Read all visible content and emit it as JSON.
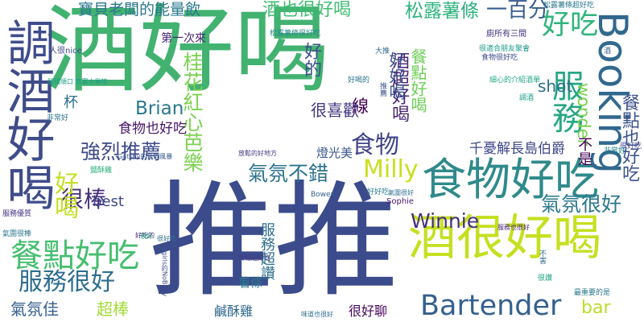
{
  "words": [
    {
      "text": "酒好喝",
      "color": "#42b271"
    },
    {
      "text": "推推",
      "color": "#3b4b8c"
    },
    {
      "text": "食物好吃",
      "color": "#2f8a8b"
    },
    {
      "text": "酒很好喝",
      "color": "#c5e021"
    },
    {
      "text": "調酒好喝",
      "color": "#3f4c8a"
    },
    {
      "text": "Booking",
      "color": "#31688e"
    },
    {
      "text": "服務",
      "color": "#26a784"
    },
    {
      "text": "Bartender",
      "color": "#35608d"
    },
    {
      "text": "餐點好吃",
      "color": "#46be6f"
    },
    {
      "text": "服務很好",
      "color": "#2e6d8e"
    },
    {
      "text": "Milly",
      "color": "#c8e020"
    },
    {
      "text": "Winnie",
      "color": "#46307e"
    },
    {
      "text": "氣氛很好",
      "color": "#2a788e"
    },
    {
      "text": "強烈推薦",
      "color": "#3e4a89"
    },
    {
      "text": "氣氛不錯",
      "color": "#2c728e"
    },
    {
      "text": "桂花紅心芭樂",
      "color": "#7cd250"
    },
    {
      "text": "酒也很好喝",
      "color": "#40bd72"
    },
    {
      "text": "好吃",
      "color": "#31b57b"
    },
    {
      "text": "餐點也好吃",
      "color": "#3b528b"
    },
    {
      "text": "很棒",
      "color": "#472d7b"
    },
    {
      "text": "好喝",
      "color": "#c2df23"
    },
    {
      "text": "食物",
      "color": "#414487"
    },
    {
      "text": "寶貝老闆的能量飲",
      "color": "#2a778e"
    },
    {
      "text": "松露薯條",
      "color": "#2db27d"
    },
    {
      "text": "一百分",
      "color": "#365c8d"
    },
    {
      "text": "Brian",
      "color": "#2a788e"
    },
    {
      "text": "好的",
      "color": "#3d4e8a"
    },
    {
      "text": "酒超好喝",
      "color": "#482576"
    },
    {
      "text": "餐點好喝",
      "color": "#6ece58"
    },
    {
      "text": "好好喝",
      "color": "#3b528b"
    },
    {
      "text": "wonder",
      "color": "#7ad151"
    },
    {
      "text": "不是",
      "color": "#440154"
    },
    {
      "text": "shot",
      "color": "#2e6e8e"
    },
    {
      "text": "線",
      "color": "#440154"
    },
    {
      "text": "杯",
      "color": "#2d708e"
    },
    {
      "text": "很喜歡",
      "color": "#453781"
    },
    {
      "text": "食物也好吃",
      "color": "#481769"
    },
    {
      "text": "千憂解長島伯爵",
      "color": "#3f4788"
    },
    {
      "text": "燈光美",
      "color": "#39568c"
    },
    {
      "text": "bar",
      "color": "#bade28"
    },
    {
      "text": "best",
      "color": "#3e4989"
    },
    {
      "text": "氣氛佳",
      "color": "#355f8d"
    },
    {
      "text": "超棒",
      "color": "#a2da37"
    },
    {
      "text": "鹹酥雞",
      "color": "#30698e"
    },
    {
      "text": "很好聊",
      "color": "#450559"
    },
    {
      "text": "服務超讚",
      "color": "#2e6f8e"
    },
    {
      "text": "薯條",
      "color": "#2a788e"
    },
    {
      "text": "第一次來",
      "color": "#482475"
    },
    {
      "text": "人很nice",
      "color": "#3f4889"
    },
    {
      "text": "廁所有三間",
      "color": "#46337f"
    },
    {
      "text": "很適合朋友聚會",
      "color": "#1f9a8a"
    },
    {
      "text": "食物很好吃",
      "color": "#3e4a89"
    },
    {
      "text": "細心的介紹酒單",
      "color": "#22a785"
    },
    {
      "text": "松露薯條超好吃",
      "color": "#2a788e"
    },
    {
      "text": "松露薯條很好吃",
      "color": "#24878e"
    },
    {
      "text": "大推",
      "color": "#31688e"
    },
    {
      "text": "調酒",
      "color": "#1e9c89"
    },
    {
      "text": "非常好",
      "color": "#2d708e"
    },
    {
      "text": "服務優質",
      "color": "#463480"
    },
    {
      "text": "氣圍很棒",
      "color": "#2c738e"
    },
    {
      "text": "Sophie",
      "color": "#48186a"
    },
    {
      "text": "Bowen",
      "color": "#34618d"
    },
    {
      "text": "氣圍很好",
      "color": "#2f6c8e"
    },
    {
      "text": "Gatsby的金箔風暴",
      "color": "#38588c"
    },
    {
      "text": "好吃的",
      "color": "#482576"
    },
    {
      "text": "girls的NoBody",
      "color": "#3c4f8a"
    },
    {
      "text": "味道也很好",
      "color": "#2e6e8e"
    },
    {
      "text": "食物超好吃",
      "color": "#433d84"
    },
    {
      "text": "最重要的是",
      "color": "#2a768e"
    },
    {
      "text": "服務也很好",
      "color": "#482173"
    },
    {
      "text": "很好吃",
      "color": "#3f4788"
    },
    {
      "text": "放鬆的好地方",
      "color": "#453882"
    },
    {
      "text": "酸甜順口 真實水果味",
      "color": "#1f9e89"
    },
    {
      "text": "推薦",
      "color": "#3a548c"
    },
    {
      "text": "好喝的",
      "color": "#2c738e"
    },
    {
      "text": "很好",
      "color": "#22a884"
    },
    {
      "text": "不害",
      "color": "#31688e"
    },
    {
      "text": "鹽酥雞",
      "color": "#2db27d"
    },
    {
      "text": "酒",
      "color": "#365d8d"
    },
    {
      "text": "非常好",
      "color": "#25858e"
    },
    {
      "text": "很好吃",
      "color": "#2e6e8e"
    },
    {
      "text": "很讚",
      "color": "#1fa088"
    },
    {
      "text": "好好吃",
      "color": "#297b8e"
    }
  ]
}
